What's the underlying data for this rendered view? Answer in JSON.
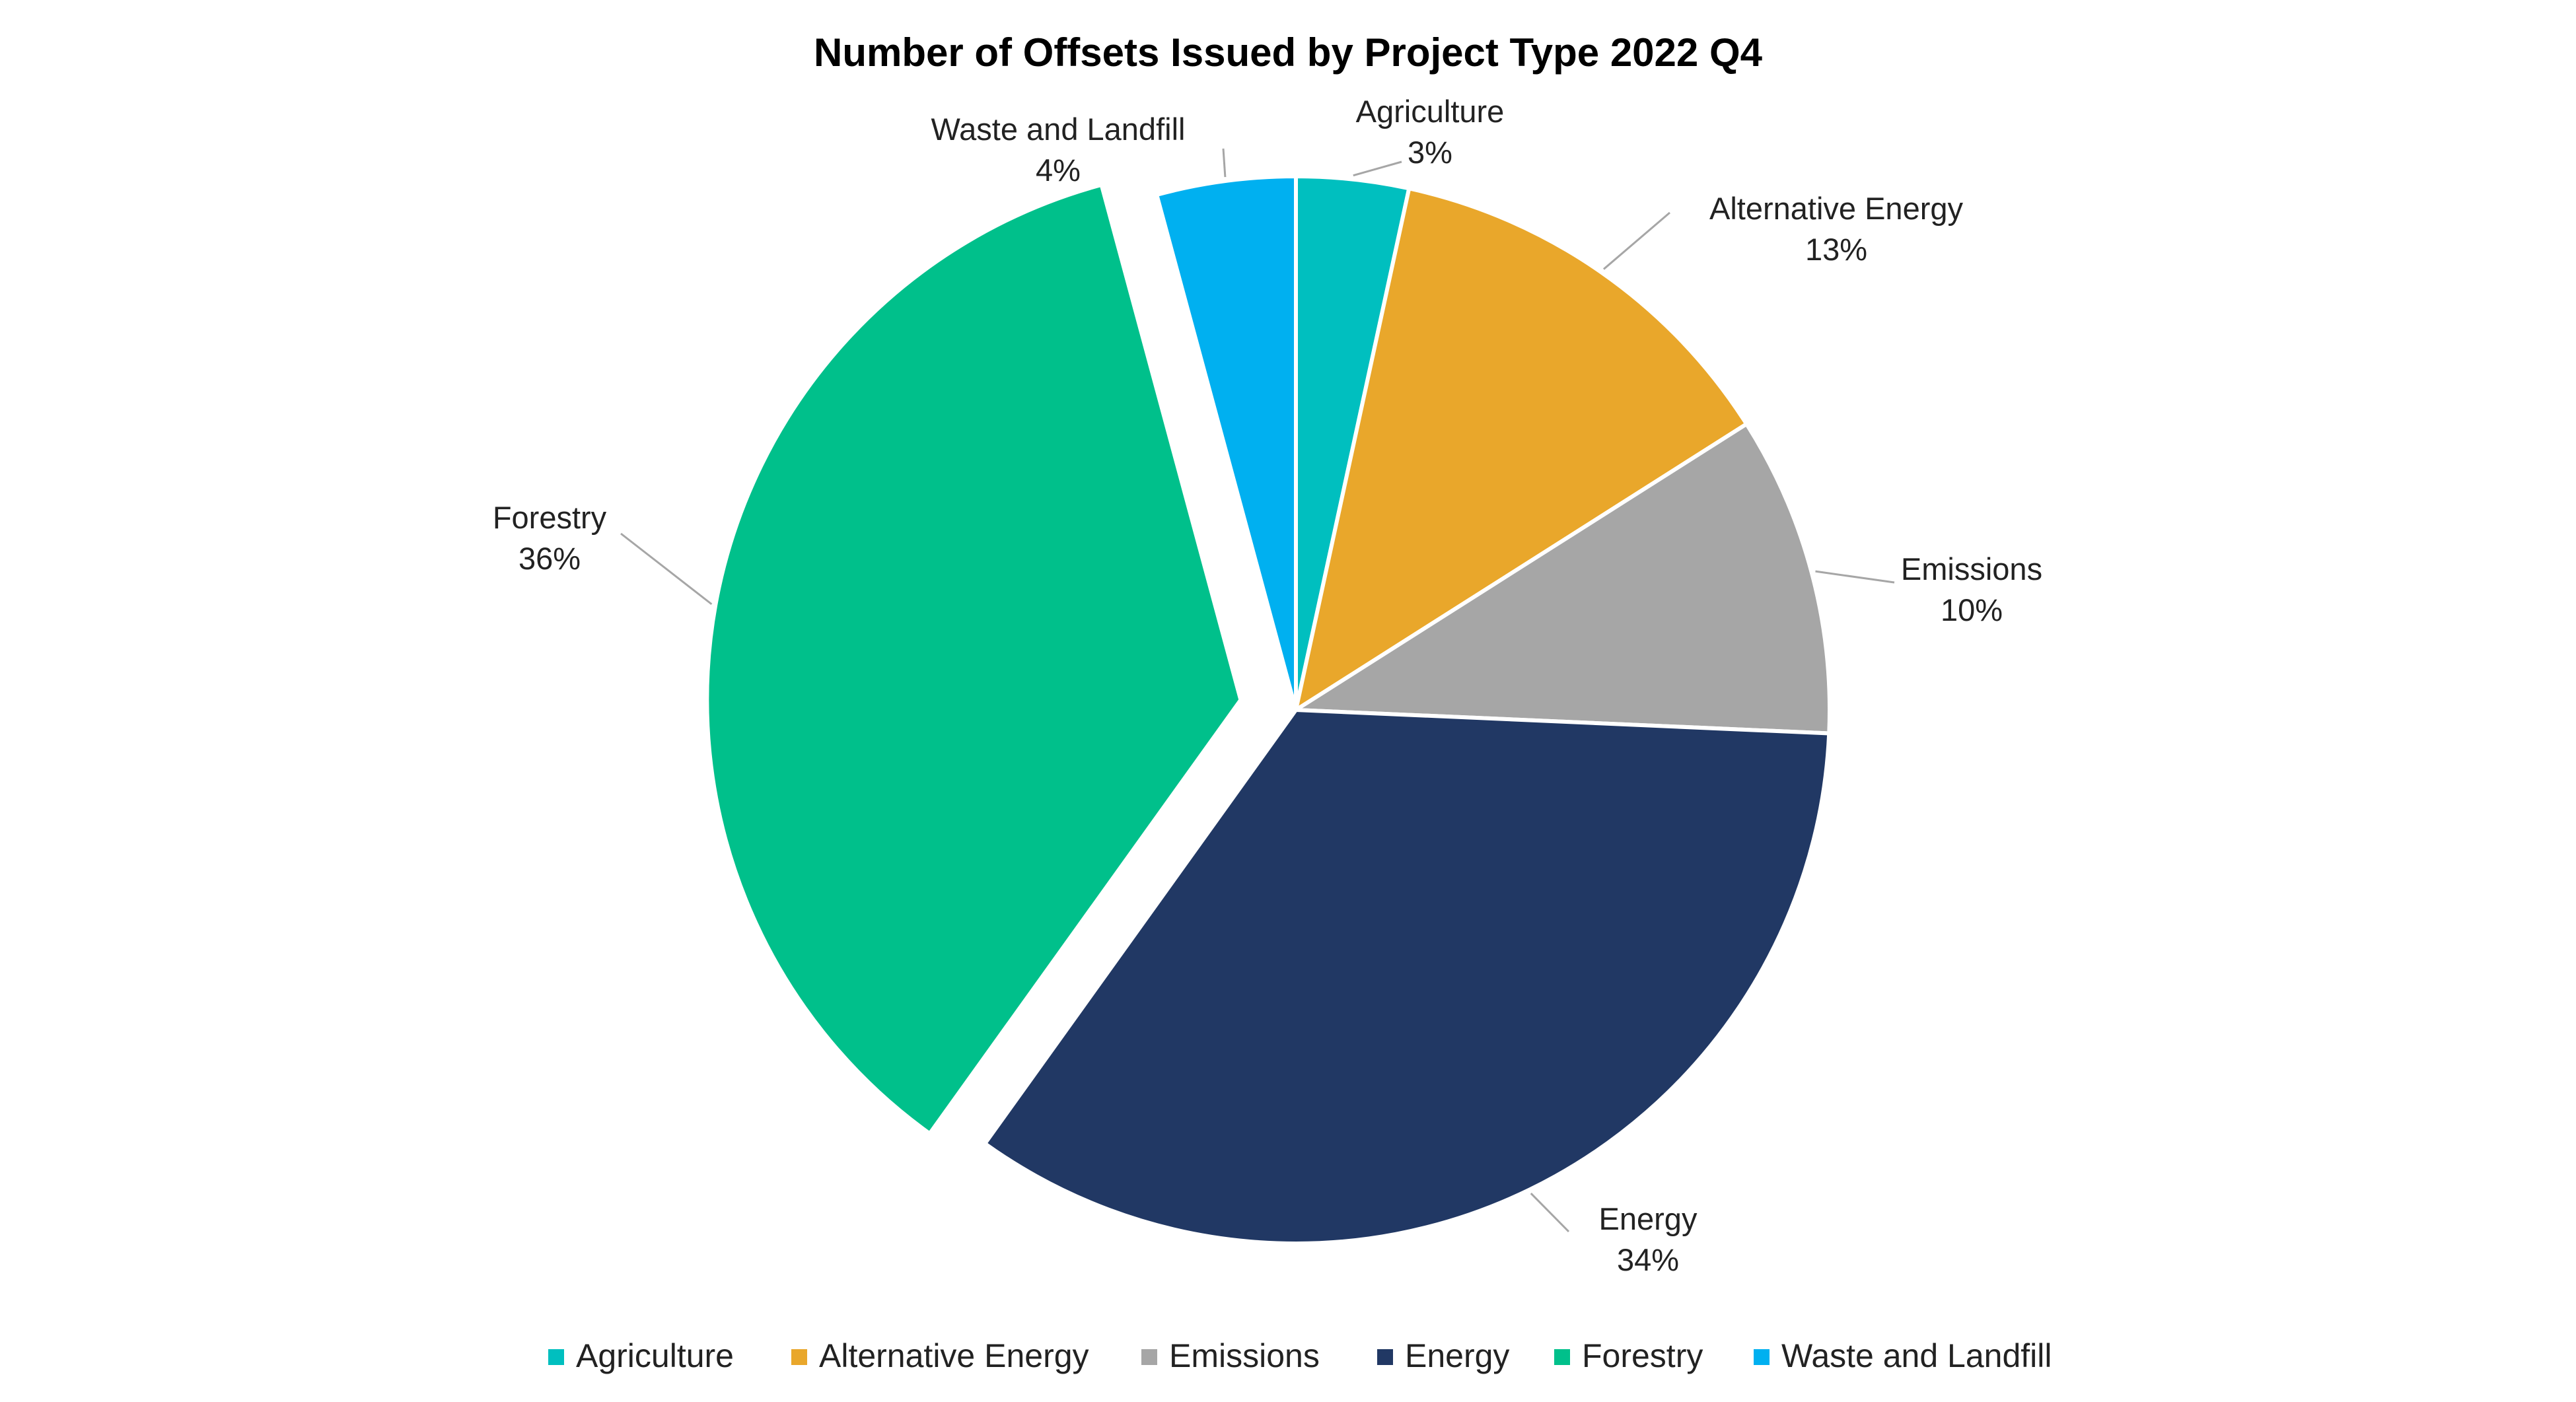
{
  "chart_data": {
    "type": "pie",
    "title": "Number of Offsets Issued by Project Type 2022 Q4",
    "categories": [
      "Agriculture",
      "Alternative Energy",
      "Emissions",
      "Energy",
      "Forestry",
      "Waste and Landfill"
    ],
    "values": [
      3.4,
      12.6,
      9.7,
      34.2,
      35.9,
      4.2
    ],
    "labels": [
      "3%",
      "13%",
      "10%",
      "34%",
      "36%",
      "4%"
    ],
    "colors": [
      "#00bfbf",
      "#e9a72b",
      "#a6a6a6",
      "#213864",
      "#00c08b",
      "#00b0f0"
    ],
    "exploded": [
      "Forestry"
    ],
    "start_angle": "12 o'clock",
    "direction": "clockwise",
    "legend_position": "bottom",
    "data_labels": "category name and percentage, outside with leader lines"
  }
}
